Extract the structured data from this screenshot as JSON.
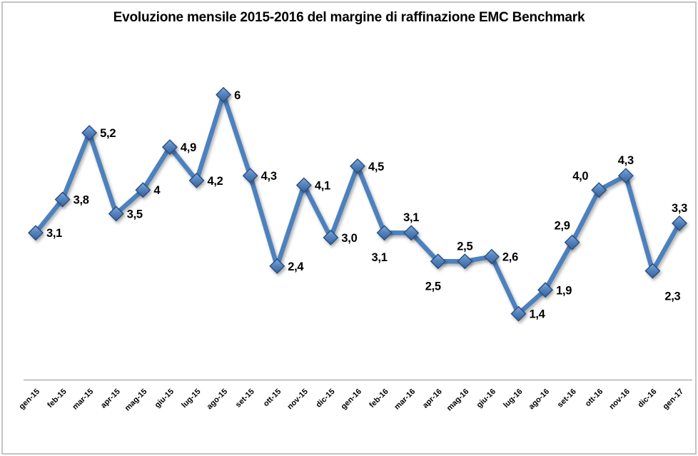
{
  "chart_data": {
    "type": "line",
    "title": "Evoluzione mensile 2015-2016 del margine di raffinazione EMC Benchmark",
    "categories": [
      "gen-15",
      "feb-15",
      "mar-15",
      "apr-15",
      "mag-15",
      "giu-15",
      "lug-15",
      "ago-15",
      "set-15",
      "ott-15",
      "nov-15",
      "dic-15",
      "gen-16",
      "feb-16",
      "mar-16",
      "apr-16",
      "mag-16",
      "giu-16",
      "lug-16",
      "ago-16",
      "set-16",
      "ott-16",
      "nov-16",
      "dic-16",
      "gen-17"
    ],
    "values": [
      3.1,
      3.8,
      5.2,
      3.5,
      4,
      4.9,
      4.2,
      6,
      4.3,
      2.4,
      4.1,
      3.0,
      4.5,
      3.1,
      3.1,
      2.5,
      2.5,
      2.6,
      1.4,
      1.9,
      2.9,
      4.0,
      4.3,
      2.3,
      3.3
    ],
    "point_labels": [
      "3,1",
      "3,8",
      "5,2",
      "3,5",
      "4",
      "4,9",
      "4,2",
      "6",
      "4,3",
      "2,4",
      "4,1",
      "3,0",
      "4,5",
      "3,1",
      "3,1",
      "2,5",
      "2,5",
      "2,6",
      "1,4",
      "1,9",
      "2,9",
      "4,0",
      "4,3",
      "2,3",
      "3,3"
    ],
    "label_positions": [
      "right",
      "right",
      "right",
      "right",
      "right",
      "right",
      "right",
      "right",
      "right",
      "right",
      "right",
      "right",
      "right",
      "below",
      "above",
      "below",
      "above",
      "right",
      "right",
      "right",
      "above-left-near",
      "above-left",
      "above",
      "below-right",
      "above"
    ],
    "xlabel": "",
    "ylabel": "",
    "ylim": [
      0,
      7
    ],
    "grid": false,
    "legend": "none",
    "colors": {
      "line": "#4E81BD",
      "marker_top": "#7FA9DB",
      "marker_mid": "#5584C0",
      "marker_bottom": "#38639C",
      "marker_border": "#2A4E7E",
      "axis": "#A6A6A6",
      "label": "#000000",
      "frame_border": "#C3C3C3",
      "background": "#FFFFFF"
    }
  }
}
